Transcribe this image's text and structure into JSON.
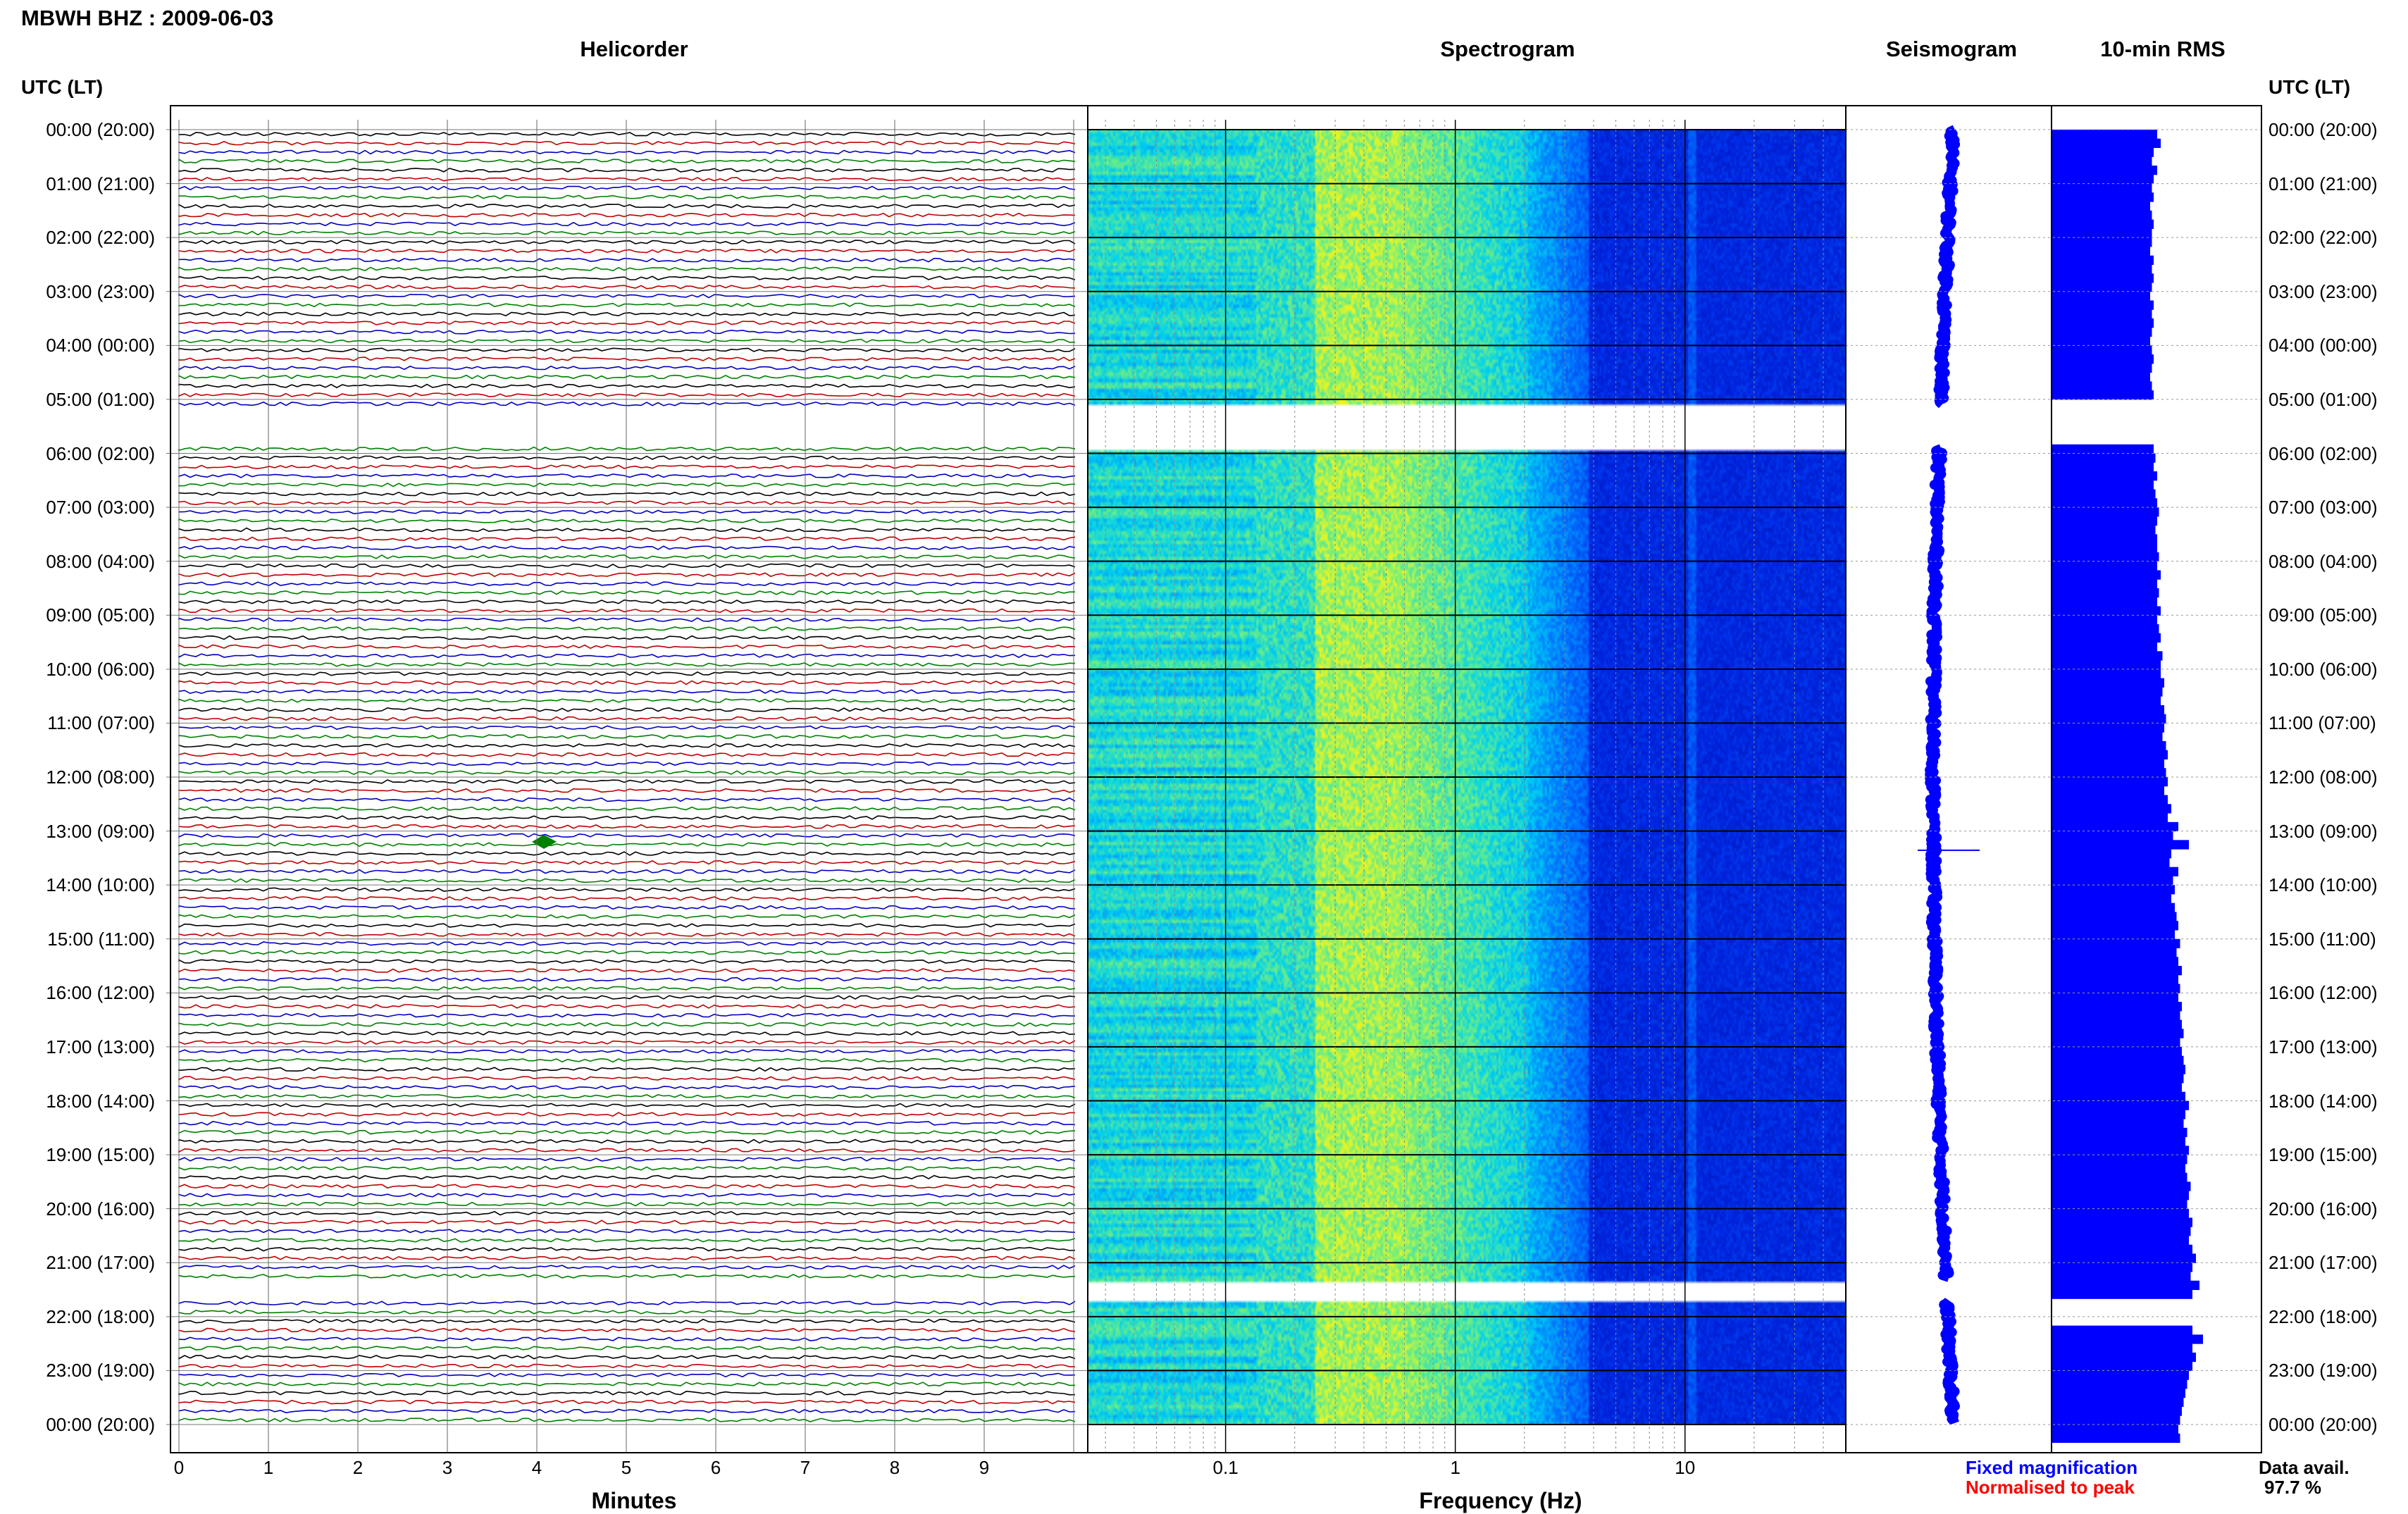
{
  "header": {
    "title": "MBWH BHZ : 2009-06-03"
  },
  "panels": {
    "helicorder": "Helicorder",
    "spectrogram": "Spectrogram",
    "seismogram": "Seismogram",
    "rms": "10-min RMS"
  },
  "time_axis_label_left": "UTC (LT)",
  "time_axis_label_right": "UTC (LT)",
  "time_labels": [
    "00:00 (20:00)",
    "01:00 (21:00)",
    "02:00 (22:00)",
    "03:00 (23:00)",
    "04:00 (00:00)",
    "05:00 (01:00)",
    "06:00 (02:00)",
    "07:00 (03:00)",
    "08:00 (04:00)",
    "09:00 (05:00)",
    "10:00 (06:00)",
    "11:00 (07:00)",
    "12:00 (08:00)",
    "13:00 (09:00)",
    "14:00 (10:00)",
    "15:00 (11:00)",
    "16:00 (12:00)",
    "17:00 (13:00)",
    "18:00 (14:00)",
    "19:00 (15:00)",
    "20:00 (16:00)",
    "21:00 (17:00)",
    "22:00 (18:00)",
    "23:00 (19:00)",
    "00:00 (20:00)"
  ],
  "helicorder_axis": {
    "label": "Minutes",
    "ticks": [
      "0",
      "1",
      "2",
      "3",
      "4",
      "5",
      "6",
      "7",
      "8",
      "9"
    ]
  },
  "spectrogram_axis": {
    "label": "Frequency (Hz)",
    "ticks": [
      "0.1",
      "1",
      "10"
    ],
    "scale": "log"
  },
  "legend": {
    "fixed": "Fixed magnification",
    "normalised": "Normalised to peak"
  },
  "availability": {
    "label": "Data avail.",
    "value": "97.7 %"
  },
  "colors": {
    "trace_cycle": [
      "#000000",
      "#c00000",
      "#0000c0",
      "#008000"
    ],
    "fixed_legend": "#0000ff",
    "normalised_legend": "#ff0000",
    "rms_bar": "#0000ff",
    "seismogram": "#0000ff"
  },
  "chart_data": {
    "type": "heatmap",
    "data_availability_percent": 97.7,
    "gaps_utc_hours": [
      [
        5.1,
        5.9
      ],
      [
        21.3,
        21.7
      ]
    ],
    "helicorder_event_utc_hour": 13.2,
    "rms_10min_relative": [
      0.6,
      0.62,
      0.58,
      0.57,
      0.6,
      0.58,
      0.57,
      0.58,
      0.56,
      0.57,
      0.58,
      0.57,
      0.57,
      0.56,
      0.58,
      0.57,
      0.58,
      0.57,
      0.56,
      0.58,
      0.57,
      0.58,
      0.57,
      0.56,
      0.57,
      0.58,
      0.57,
      0.56,
      0.57,
      0.58,
      null,
      null,
      null,
      null,
      null,
      0.58,
      0.59,
      0.58,
      0.6,
      0.58,
      0.59,
      0.6,
      0.61,
      0.6,
      0.59,
      0.6,
      0.6,
      0.61,
      0.6,
      0.62,
      0.6,
      0.61,
      0.6,
      0.62,
      0.6,
      0.61,
      0.62,
      0.6,
      0.63,
      0.62,
      0.62,
      0.64,
      0.63,
      0.62,
      0.64,
      0.65,
      0.64,
      0.63,
      0.65,
      0.66,
      0.64,
      0.65,
      0.66,
      0.64,
      0.66,
      0.68,
      0.66,
      0.72,
      0.69,
      0.78,
      0.68,
      0.67,
      0.72,
      0.69,
      0.7,
      0.68,
      0.7,
      0.71,
      0.72,
      0.7,
      0.73,
      0.71,
      0.72,
      0.74,
      0.72,
      0.73,
      0.72,
      0.74,
      0.73,
      0.74,
      0.75,
      0.73,
      0.74,
      0.75,
      0.76,
      0.75,
      0.74,
      0.76,
      0.78,
      0.76,
      0.75,
      0.77,
      0.76,
      0.78,
      0.77,
      0.76,
      0.77,
      0.79,
      0.78,
      0.77,
      0.78,
      0.8,
      0.79,
      0.78,
      0.8,
      0.82,
      0.8,
      0.79,
      0.84,
      0.8,
      null,
      null,
      null,
      0.8,
      0.86,
      0.8,
      0.82,
      0.8,
      0.78,
      0.77,
      0.76,
      0.75,
      0.74,
      0.73,
      0.72,
      0.73
    ]
  }
}
